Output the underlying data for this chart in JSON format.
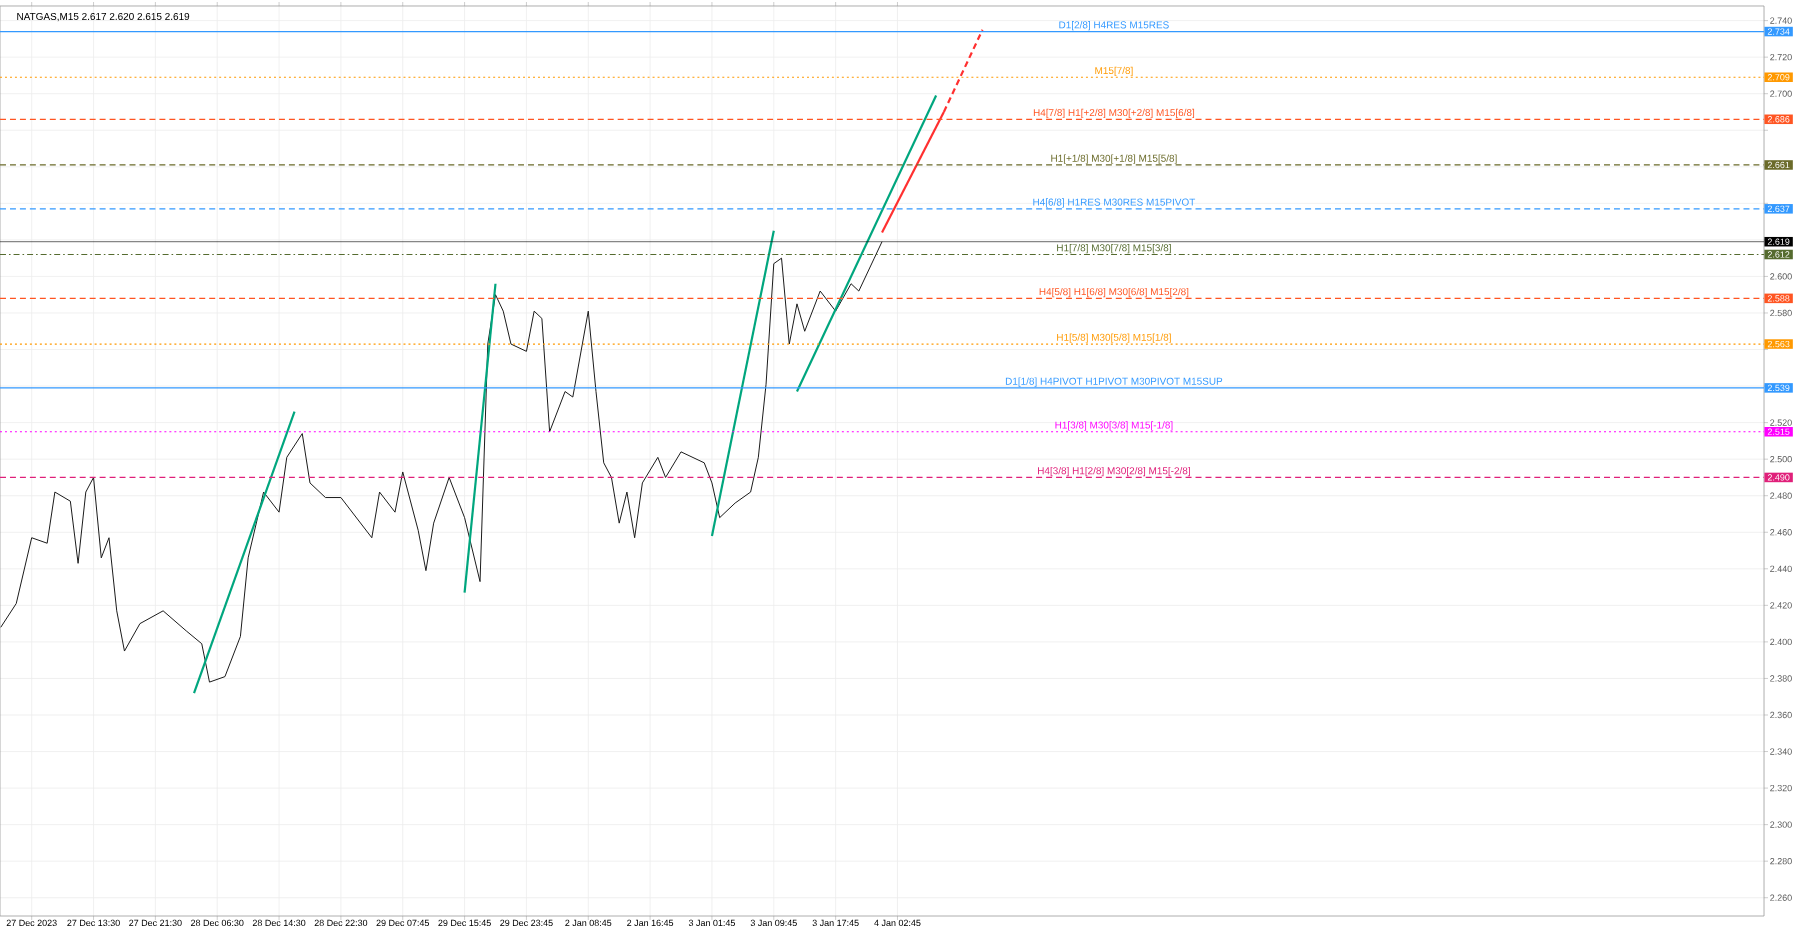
{
  "chart_data": {
    "type": "line",
    "title": "NATGAS,M15 2.617 2.620 2.615 2.619",
    "grid": true,
    "marker": "none",
    "ylim": [
      2.25,
      2.748
    ],
    "categories": [
      null,
      null,
      null,
      null,
      "27 Dec 2023",
      null,
      null,
      null,
      null,
      null,
      null,
      null,
      "27 Dec 13:30",
      null,
      null,
      null,
      null,
      null,
      null,
      null,
      "27 Dec 21:30",
      null,
      null,
      null,
      null,
      null,
      null,
      null,
      "28 Dec 06:30",
      null,
      null,
      null,
      null,
      null,
      null,
      null,
      "28 Dec 14:30",
      null,
      null,
      null,
      null,
      null,
      null,
      null,
      "28 Dec 22:30",
      null,
      null,
      null,
      null,
      null,
      null,
      null,
      "29 Dec 07:45",
      null,
      null,
      null,
      null,
      null,
      null,
      null,
      "29 Dec 15:45",
      null,
      null,
      null,
      null,
      null,
      null,
      null,
      "29 Dec 23:45",
      null,
      null,
      null,
      null,
      null,
      null,
      null,
      "2 Jan 08:45",
      null,
      null,
      null,
      null,
      null,
      null,
      null,
      "2 Jan 16:45",
      null,
      null,
      null,
      null,
      null,
      null,
      null,
      "3 Jan 01:45",
      null,
      null,
      null,
      null,
      null,
      null,
      null,
      "3 Jan 09:45",
      null,
      null,
      null,
      null,
      null,
      null,
      null,
      "3 Jan 17:45",
      null,
      null,
      null,
      null,
      null,
      null,
      null,
      "4 Jan 02:45",
      null,
      null,
      null,
      null,
      null,
      null,
      null,
      null,
      null,
      null,
      null,
      null,
      null,
      null,
      null,
      null,
      null,
      null,
      null,
      null,
      null,
      null,
      null,
      null,
      null,
      null,
      null,
      null,
      null,
      null,
      null,
      null,
      null,
      null,
      null,
      null,
      null,
      null,
      null,
      null,
      null,
      null,
      null,
      null,
      null,
      null,
      null,
      null,
      null,
      null,
      null,
      null,
      null,
      null,
      null,
      null,
      null,
      null,
      null,
      null,
      null,
      null,
      null,
      null,
      null,
      null,
      null,
      null,
      null,
      null,
      null,
      null,
      null,
      null,
      null,
      null,
      null,
      null,
      null,
      null,
      null,
      null,
      null,
      null,
      null,
      null,
      null,
      null,
      null,
      null,
      null,
      null,
      null,
      null,
      null,
      null,
      null,
      null,
      null,
      null,
      null,
      null,
      null,
      null,
      null,
      null,
      null,
      null,
      null,
      null,
      null,
      null
    ],
    "yticks": [
      {
        "value": 2.26,
        "label": "2.260"
      },
      {
        "value": 2.28,
        "label": "2.280"
      },
      {
        "value": 2.3,
        "label": "2.300"
      },
      {
        "value": 2.32,
        "label": "2.320"
      },
      {
        "value": 2.34,
        "label": "2.340"
      },
      {
        "value": 2.36,
        "label": "2.360"
      },
      {
        "value": 2.38,
        "label": "2.380"
      },
      {
        "value": 2.4,
        "label": "2.400"
      },
      {
        "value": 2.42,
        "label": "2.420"
      },
      {
        "value": 2.44,
        "label": "2.440"
      },
      {
        "value": 2.46,
        "label": "2.460"
      },
      {
        "value": 2.48,
        "label": "2.480"
      },
      {
        "value": 2.5,
        "label": "2.500"
      },
      {
        "value": 2.52,
        "label": "2.520"
      },
      {
        "value": 2.54,
        "label": null
      },
      {
        "value": 2.56,
        "label": null
      },
      {
        "value": 2.58,
        "label": "2.580"
      },
      {
        "value": 2.6,
        "label": "2.600"
      },
      {
        "value": 2.62,
        "label": null
      },
      {
        "value": 2.64,
        "label": null
      },
      {
        "value": 2.66,
        "label": null
      },
      {
        "value": 2.68,
        "label": null
      },
      {
        "value": 2.7,
        "label": "2.700"
      },
      {
        "value": 2.72,
        "label": "2.720"
      },
      {
        "value": 2.74,
        "label": "2.740"
      }
    ],
    "annotations": [
      {
        "text": "2.734",
        "y": 2.734
      },
      {
        "text": "2.709",
        "y": 2.709
      },
      {
        "text": "2.686",
        "y": 2.686
      },
      {
        "text": "2.661",
        "y": 2.661
      },
      {
        "text": "2.637",
        "y": 2.637
      },
      {
        "text": "2.619",
        "y": 2.619
      },
      {
        "text": "2.612",
        "y": 2.612
      },
      {
        "text": "2.588",
        "y": 2.588
      },
      {
        "text": "2.563",
        "y": 2.563
      },
      {
        "text": "2.539",
        "y": 2.539
      },
      {
        "text": "2.515",
        "y": 2.515
      },
      {
        "text": "2.490",
        "y": 2.49
      }
    ],
    "series": [
      {
        "color": "#1a1a1a",
        "line_style": "solid",
        "values": [
          2.408,
          null,
          2.421,
          null,
          2.457,
          null,
          2.454,
          2.482,
          null,
          2.477,
          2.443,
          2.482,
          2.49,
          2.446,
          2.457,
          2.417,
          2.395,
          null,
          2.41,
          null,
          null,
          2.417,
          null,
          null,
          2.406,
          null,
          2.399,
          2.378,
          null,
          2.381,
          null,
          2.403,
          2.446,
          null,
          2.482,
          null,
          2.471,
          2.501,
          null,
          2.514,
          2.487,
          null,
          2.479,
          null,
          2.479,
          null,
          2.468,
          null,
          2.457,
          2.482,
          null,
          2.471,
          2.493,
          null,
          2.461,
          2.439,
          2.465,
          null,
          2.49,
          null,
          2.468,
          null,
          2.433,
          2.563,
          2.59,
          2.581,
          2.563,
          null,
          2.559,
          2.581,
          2.577,
          2.515,
          null,
          2.537,
          2.534,
          null,
          2.581,
          2.537,
          2.498,
          2.49,
          2.465,
          2.482,
          2.457,
          2.487,
          null,
          2.501,
          2.49,
          null,
          2.504,
          null,
          null,
          2.498,
          2.487,
          2.468,
          null,
          2.476,
          null,
          2.482,
          2.501,
          2.541,
          2.607,
          2.61,
          2.563,
          2.585,
          2.57,
          null,
          2.592,
          null,
          2.581,
          null,
          2.596,
          2.592,
          null,
          2.61,
          2.619,
          null,
          null,
          null,
          null,
          null,
          null,
          null,
          null,
          null,
          null,
          null,
          null,
          null,
          null,
          null,
          null,
          null,
          null,
          null,
          null,
          null,
          null,
          null,
          null,
          null,
          null,
          null,
          null,
          null,
          null,
          null,
          null,
          null,
          null,
          null,
          null,
          null,
          null,
          null,
          null,
          null,
          null,
          null,
          null,
          null,
          null,
          null,
          null,
          null,
          null,
          null,
          null,
          null,
          null,
          null,
          null,
          null,
          null,
          null,
          null,
          null,
          null,
          null,
          null,
          null,
          null,
          null,
          null,
          null,
          null,
          null,
          null,
          null,
          null,
          null,
          null,
          null,
          null,
          null,
          null,
          null,
          null,
          null,
          null,
          null,
          null,
          null,
          null,
          null,
          null,
          null,
          null,
          null,
          null,
          null,
          null,
          null,
          null,
          null,
          null,
          null,
          null,
          null,
          null,
          null,
          null,
          null,
          null,
          null,
          null,
          null,
          null,
          null,
          null
        ]
      },
      {
        "color": "#00a67e",
        "line_style": "solid",
        "values": [
          null,
          null,
          null,
          null,
          null,
          null,
          null,
          null,
          null,
          null,
          null,
          null,
          null,
          null,
          null,
          null,
          null,
          null,
          null,
          null,
          null,
          null,
          null,
          null,
          null,
          2.372,
          null,
          null,
          null,
          null,
          null,
          null,
          null,
          null,
          null,
          null,
          null,
          null,
          2.526,
          null,
          null,
          null,
          null,
          null,
          null,
          null,
          null,
          null,
          null,
          null,
          null,
          null,
          null,
          null,
          null,
          null,
          null,
          null,
          null,
          null,
          null,
          null,
          null,
          null,
          null,
          null,
          null,
          null,
          null,
          null,
          null,
          null,
          null,
          null,
          null,
          null,
          null,
          null,
          null,
          null,
          null,
          null,
          null,
          null,
          null,
          null,
          null,
          null,
          null,
          null,
          null,
          null,
          null,
          null,
          null,
          null,
          null,
          null,
          null,
          null,
          null,
          null,
          null,
          null,
          null,
          null,
          null,
          null,
          null,
          null,
          null,
          null,
          null,
          null,
          null,
          null,
          null,
          null,
          null,
          null,
          null,
          null,
          null,
          null,
          null,
          null,
          null,
          null,
          null,
          null,
          null,
          null,
          null,
          null,
          null,
          null,
          null,
          null,
          null,
          null,
          null,
          null,
          null,
          null,
          null,
          null,
          null,
          null,
          null,
          null,
          null,
          null,
          null,
          null,
          null,
          null,
          null,
          null,
          null,
          null,
          null,
          null,
          null,
          null,
          null,
          null,
          null,
          null,
          null,
          null,
          null,
          null,
          null,
          null,
          null,
          null,
          null,
          null,
          null,
          null,
          null,
          null,
          null,
          null,
          null,
          null,
          null,
          null,
          null,
          null,
          null,
          null,
          null,
          null,
          null,
          null,
          null,
          null,
          null,
          null,
          null,
          null,
          null,
          null,
          null,
          null,
          null,
          null,
          null,
          null,
          null,
          null,
          null,
          null,
          null,
          null,
          null,
          null,
          null,
          null,
          null,
          null,
          null,
          null,
          null,
          null,
          null,
          null,
          null
        ]
      },
      {
        "color": "#00a67e",
        "line_style": "solid",
        "values": [
          null,
          null,
          null,
          null,
          null,
          null,
          null,
          null,
          null,
          null,
          null,
          null,
          null,
          null,
          null,
          null,
          null,
          null,
          null,
          null,
          null,
          null,
          null,
          null,
          null,
          null,
          null,
          null,
          null,
          null,
          null,
          null,
          null,
          null,
          null,
          null,
          null,
          null,
          null,
          null,
          null,
          null,
          null,
          null,
          null,
          null,
          null,
          null,
          null,
          null,
          null,
          null,
          null,
          null,
          null,
          null,
          null,
          null,
          null,
          null,
          2.427,
          null,
          null,
          null,
          2.596,
          null,
          null,
          null,
          null,
          null,
          null,
          null,
          null,
          null,
          null,
          null,
          null,
          null,
          null,
          null,
          null,
          null,
          null,
          null,
          null,
          null,
          null,
          null,
          null,
          null,
          null,
          null,
          null,
          null,
          null,
          null,
          null,
          null,
          null,
          null,
          null,
          null,
          null,
          null,
          null,
          null,
          null,
          null,
          null,
          null,
          null,
          null,
          null,
          null,
          null,
          null,
          null,
          null,
          null,
          null,
          null,
          null,
          null,
          null,
          null,
          null,
          null,
          null,
          null,
          null,
          null,
          null,
          null,
          null,
          null,
          null,
          null,
          null,
          null,
          null,
          null,
          null,
          null,
          null,
          null,
          null,
          null,
          null,
          null,
          null,
          null,
          null,
          null,
          null,
          null,
          null,
          null,
          null,
          null,
          null,
          null,
          null,
          null,
          null,
          null,
          null,
          null,
          null,
          null,
          null,
          null,
          null,
          null,
          null,
          null,
          null,
          null,
          null,
          null,
          null,
          null,
          null,
          null,
          null,
          null,
          null,
          null,
          null,
          null,
          null,
          null,
          null,
          null,
          null,
          null,
          null,
          null,
          null,
          null,
          null,
          null,
          null,
          null,
          null,
          null,
          null,
          null,
          null,
          null,
          null,
          null,
          null,
          null,
          null,
          null,
          null,
          null,
          null,
          null,
          null,
          null,
          null,
          null,
          null,
          null,
          null,
          null,
          null,
          null
        ]
      },
      {
        "color": "#00a67e",
        "line_style": "solid",
        "values": [
          null,
          null,
          null,
          null,
          null,
          null,
          null,
          null,
          null,
          null,
          null,
          null,
          null,
          null,
          null,
          null,
          null,
          null,
          null,
          null,
          null,
          null,
          null,
          null,
          null,
          null,
          null,
          null,
          null,
          null,
          null,
          null,
          null,
          null,
          null,
          null,
          null,
          null,
          null,
          null,
          null,
          null,
          null,
          null,
          null,
          null,
          null,
          null,
          null,
          null,
          null,
          null,
          null,
          null,
          null,
          null,
          null,
          null,
          null,
          null,
          null,
          null,
          null,
          null,
          null,
          null,
          null,
          null,
          null,
          null,
          null,
          null,
          null,
          null,
          null,
          null,
          null,
          null,
          null,
          null,
          null,
          null,
          null,
          null,
          null,
          null,
          null,
          null,
          null,
          null,
          null,
          null,
          2.458,
          null,
          null,
          null,
          null,
          null,
          null,
          null,
          2.625,
          null,
          null,
          null,
          null,
          null,
          null,
          null,
          null,
          null,
          null,
          null,
          null,
          null,
          null,
          null,
          null,
          null,
          null,
          null,
          null,
          null,
          null,
          null,
          null,
          null,
          null,
          null,
          null,
          null,
          null,
          null,
          null,
          null,
          null,
          null,
          null,
          null,
          null,
          null,
          null,
          null,
          null,
          null,
          null,
          null,
          null,
          null,
          null,
          null,
          null,
          null,
          null,
          null,
          null,
          null,
          null,
          null,
          null,
          null,
          null,
          null,
          null,
          null,
          null,
          null,
          null,
          null,
          null,
          null,
          null,
          null,
          null,
          null,
          null,
          null,
          null,
          null,
          null,
          null,
          null,
          null,
          null,
          null,
          null,
          null,
          null,
          null,
          null,
          null,
          null,
          null,
          null,
          null,
          null,
          null,
          null,
          null,
          null,
          null,
          null,
          null,
          null,
          null,
          null,
          null,
          null,
          null,
          null,
          null,
          null,
          null,
          null,
          null,
          null,
          null,
          null,
          null,
          null,
          null,
          null,
          null,
          null,
          null,
          null,
          null,
          null,
          null,
          null
        ]
      },
      {
        "color": "#00a67e",
        "line_style": "solid",
        "values": [
          null,
          null,
          null,
          null,
          null,
          null,
          null,
          null,
          null,
          null,
          null,
          null,
          null,
          null,
          null,
          null,
          null,
          null,
          null,
          null,
          null,
          null,
          null,
          null,
          null,
          null,
          null,
          null,
          null,
          null,
          null,
          null,
          null,
          null,
          null,
          null,
          null,
          null,
          null,
          null,
          null,
          null,
          null,
          null,
          null,
          null,
          null,
          null,
          null,
          null,
          null,
          null,
          null,
          null,
          null,
          null,
          null,
          null,
          null,
          null,
          null,
          null,
          null,
          null,
          null,
          null,
          null,
          null,
          null,
          null,
          null,
          null,
          null,
          null,
          null,
          null,
          null,
          null,
          null,
          null,
          null,
          null,
          null,
          null,
          null,
          null,
          null,
          null,
          null,
          null,
          null,
          null,
          null,
          null,
          null,
          null,
          null,
          null,
          null,
          null,
          null,
          null,
          null,
          2.537,
          null,
          null,
          null,
          null,
          null,
          null,
          null,
          null,
          null,
          null,
          null,
          null,
          null,
          null,
          null,
          null,
          null,
          2.699,
          null,
          null,
          null,
          null,
          null,
          null,
          null,
          null,
          null,
          null,
          null,
          null,
          null,
          null,
          null,
          null,
          null,
          null,
          null,
          null,
          null,
          null,
          null,
          null,
          null,
          null,
          null,
          null,
          null,
          null,
          null,
          null,
          null,
          null,
          null,
          null,
          null,
          null,
          null,
          null,
          null,
          null,
          null,
          null,
          null,
          null,
          null,
          null,
          null,
          null,
          null,
          null,
          null,
          null,
          null,
          null,
          null,
          null,
          null,
          null,
          null,
          null,
          null,
          null,
          null,
          null,
          null,
          null,
          null,
          null,
          null,
          null,
          null,
          null,
          null,
          null,
          null,
          null,
          null,
          null,
          null,
          null,
          null,
          null,
          null,
          null,
          null,
          null,
          null,
          null,
          null,
          null,
          null,
          null,
          null,
          null,
          null,
          null,
          null,
          null,
          null,
          null,
          null,
          null,
          null,
          null,
          null
        ]
      },
      {
        "color": "#ff3030",
        "line_style": "solid",
        "values": [
          null,
          null,
          null,
          null,
          null,
          null,
          null,
          null,
          null,
          null,
          null,
          null,
          null,
          null,
          null,
          null,
          null,
          null,
          null,
          null,
          null,
          null,
          null,
          null,
          null,
          null,
          null,
          null,
          null,
          null,
          null,
          null,
          null,
          null,
          null,
          null,
          null,
          null,
          null,
          null,
          null,
          null,
          null,
          null,
          null,
          null,
          null,
          null,
          null,
          null,
          null,
          null,
          null,
          null,
          null,
          null,
          null,
          null,
          null,
          null,
          null,
          null,
          null,
          null,
          null,
          null,
          null,
          null,
          null,
          null,
          null,
          null,
          null,
          null,
          null,
          null,
          null,
          null,
          null,
          null,
          null,
          null,
          null,
          null,
          null,
          null,
          null,
          null,
          null,
          null,
          null,
          null,
          null,
          null,
          null,
          null,
          null,
          null,
          null,
          null,
          null,
          null,
          null,
          null,
          null,
          null,
          null,
          null,
          null,
          null,
          null,
          null,
          null,
          null,
          2.624,
          null,
          null,
          null,
          null,
          null,
          null,
          null,
          2.69,
          null,
          null,
          null,
          null,
          null,
          null,
          null,
          null,
          null,
          null,
          null,
          null,
          null,
          null,
          null,
          null,
          null,
          null,
          null,
          null,
          null,
          null,
          null,
          null,
          null,
          null,
          null,
          null,
          null,
          null,
          null,
          null,
          null,
          null,
          null,
          null,
          null,
          null,
          null,
          null,
          null,
          null,
          null,
          null,
          null,
          null,
          null,
          null,
          null,
          null,
          null,
          null,
          null,
          null,
          null,
          null,
          null,
          null,
          null,
          null,
          null,
          null,
          null,
          null,
          null,
          null,
          null,
          null,
          null,
          null,
          null,
          null,
          null,
          null,
          null,
          null,
          null,
          null,
          null,
          null,
          null,
          null,
          null,
          null,
          null,
          null,
          null,
          null,
          null,
          null,
          null,
          null,
          null,
          null,
          null,
          null,
          null,
          null,
          null,
          null,
          null,
          null,
          null,
          null,
          null,
          null
        ]
      },
      {
        "color": "#ff3030",
        "line_style": "dashed",
        "values": [
          null,
          null,
          null,
          null,
          null,
          null,
          null,
          null,
          null,
          null,
          null,
          null,
          null,
          null,
          null,
          null,
          null,
          null,
          null,
          null,
          null,
          null,
          null,
          null,
          null,
          null,
          null,
          null,
          null,
          null,
          null,
          null,
          null,
          null,
          null,
          null,
          null,
          null,
          null,
          null,
          null,
          null,
          null,
          null,
          null,
          null,
          null,
          null,
          null,
          null,
          null,
          null,
          null,
          null,
          null,
          null,
          null,
          null,
          null,
          null,
          null,
          null,
          null,
          null,
          null,
          null,
          null,
          null,
          null,
          null,
          null,
          null,
          null,
          null,
          null,
          null,
          null,
          null,
          null,
          null,
          null,
          null,
          null,
          null,
          null,
          null,
          null,
          null,
          null,
          null,
          null,
          null,
          null,
          null,
          null,
          null,
          null,
          null,
          null,
          null,
          null,
          null,
          null,
          null,
          null,
          null,
          null,
          null,
          null,
          null,
          null,
          null,
          null,
          null,
          null,
          null,
          null,
          null,
          null,
          null,
          null,
          null,
          2.69,
          null,
          null,
          null,
          null,
          2.735,
          null,
          null,
          null,
          null,
          null,
          null,
          null,
          null,
          null,
          null,
          null,
          null,
          null,
          null,
          null,
          null,
          null,
          null,
          null,
          null,
          null,
          null,
          null,
          null,
          null,
          null,
          null,
          null,
          null,
          null,
          null,
          null,
          null,
          null,
          null,
          null,
          null,
          null,
          null,
          null,
          null,
          null,
          null,
          null,
          null,
          null,
          null,
          null,
          null,
          null,
          null,
          null,
          null,
          null,
          null,
          null,
          null,
          null,
          null,
          null,
          null,
          null,
          null,
          null,
          null,
          null,
          null,
          null,
          null,
          null,
          null,
          null,
          null,
          null,
          null,
          null,
          null,
          null,
          null,
          null,
          null,
          null,
          null,
          null,
          null,
          null,
          null,
          null,
          null,
          null,
          null,
          null,
          null,
          null,
          null,
          null,
          null,
          null,
          null,
          null,
          null
        ]
      }
    ],
    "ref_lines": [
      {
        "axis": "y",
        "value": 2.734,
        "label": "D1[2/8] H4RES M15RES",
        "color": "#3399ff",
        "line_style": "solid"
      },
      {
        "axis": "y",
        "value": 2.709,
        "label": "M15[7/8]",
        "color": "#ff9900",
        "line_style": "dotted"
      },
      {
        "axis": "y",
        "value": 2.686,
        "label": "H4[7/8] H1[+2/8] M30[+2/8] M15[6/8]",
        "color": "#ff5522",
        "line_style": "dashed"
      },
      {
        "axis": "y",
        "value": 2.661,
        "label": "H1[+1/8] M30[+1/8] M15[5/8]",
        "color": "#6b6b2a",
        "line_style": "dashed"
      },
      {
        "axis": "y",
        "value": 2.637,
        "label": "H4[6/8] H1RES M30RES M15PIVOT",
        "color": "#3399ff",
        "line_style": "dashed"
      },
      {
        "axis": "y",
        "value": 2.619,
        "label": null,
        "color": "#000000",
        "line_style": "solid"
      },
      {
        "axis": "y",
        "value": 2.612,
        "label": "H1[7/8] M30[7/8] M15[3/8]",
        "color": "#556b2f",
        "line_style": "dashdot"
      },
      {
        "axis": "y",
        "value": 2.588,
        "label": "H4[5/8] H1[6/8] M30[6/8] M15[2/8]",
        "color": "#ff5522",
        "line_style": "dashed"
      },
      {
        "axis": "y",
        "value": 2.563,
        "label": "H1[5/8] M30[5/8] M15[1/8]",
        "color": "#ff9900",
        "line_style": "dotted"
      },
      {
        "axis": "y",
        "value": 2.539,
        "label": "D1[1/8] H4PIVOT H1PIVOT M30PIVOT M15SUP",
        "color": "#3399ff",
        "line_style": "solid"
      },
      {
        "axis": "y",
        "value": 2.515,
        "label": "H1[3/8] M30[3/8] M15[-1/8]",
        "color": "#ff00ff",
        "line_style": "dotted"
      },
      {
        "axis": "y",
        "value": 2.49,
        "label": "H4[3/8] H1[2/8] M30[2/8] M15[-2/8]",
        "color": "#e0207a",
        "line_style": "dashed"
      }
    ]
  }
}
